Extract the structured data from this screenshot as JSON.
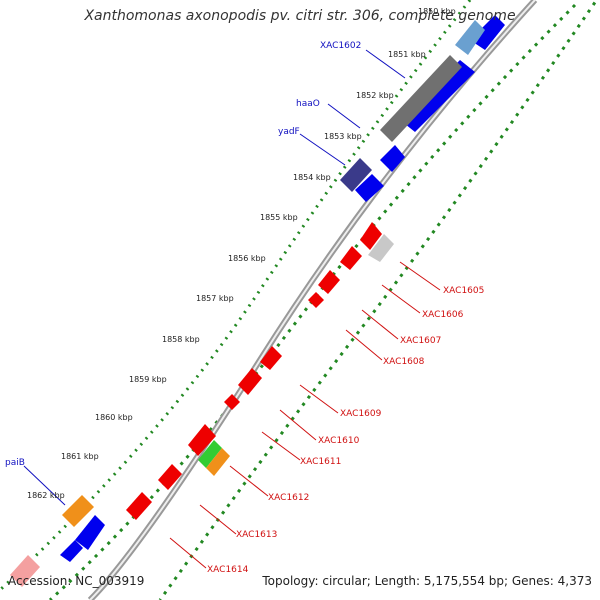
{
  "title": "Xanthomonas axonopodis pv. citri str. 306, complete genome",
  "footer": {
    "accession": "Accession: NC_003919",
    "summary": "Topology: circular; Length: 5,175,554 bp; Genes: 4,373"
  },
  "kbp_labels": [
    "1850 kbp",
    "1851 kbp",
    "1852 kbp",
    "1853 kbp",
    "1854 kbp",
    "1855 kbp",
    "1856 kbp",
    "1857 kbp",
    "1858 kbp",
    "1859 kbp",
    "1860 kbp",
    "1861 kbp",
    "1862 kbp"
  ],
  "genes_top": [
    "XAC1602",
    "haaO",
    "yadF",
    "paiB"
  ],
  "genes_bottom": [
    "XAC1605",
    "XAC1606",
    "XAC1607",
    "XAC1608",
    "XAC1609",
    "XAC1610",
    "XAC1611",
    "XAC1612",
    "XAC1613",
    "XAC1614"
  ],
  "colors": {
    "forward": "#0000ee",
    "reverse": "#ee0000",
    "backbone": "#888888",
    "tick": "#228822",
    "orange": "#f0901a",
    "green": "#33cc33",
    "slate": "#3a3a8a",
    "grey": "#707070",
    "lightgrey": "#c8c8c8",
    "pink": "#f4a0a0"
  }
}
